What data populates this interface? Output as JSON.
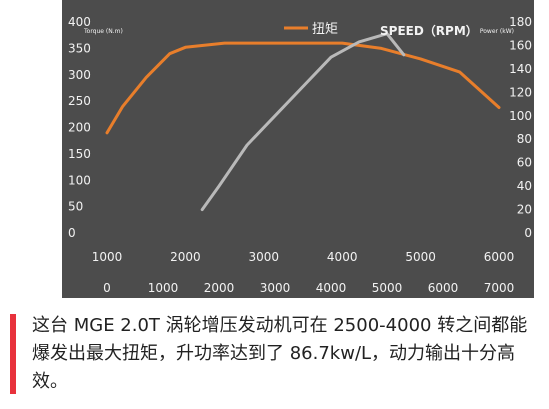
{
  "chart_data": {
    "type": "line",
    "title": "",
    "legend": {
      "torque_label": "扭矩",
      "power_label": "SPEED（RPM）",
      "placement": "top"
    },
    "y_left": {
      "title": "Torque (N.m)",
      "ticks": [
        "0",
        "50",
        "100",
        "150",
        "200",
        "250",
        "300",
        "350",
        "400"
      ],
      "ylim": [
        0,
        400
      ]
    },
    "y_right": {
      "title": "Power (kW)",
      "ticks": [
        "0",
        "20",
        "40",
        "60",
        "80",
        "100",
        "120",
        "140",
        "160",
        "180"
      ],
      "ylim": [
        0,
        180
      ]
    },
    "x_top": {
      "ticks": [
        "1000",
        "2000",
        "3000",
        "4000",
        "5000",
        "6000"
      ],
      "xlim": [
        1000,
        6000
      ]
    },
    "x_bottom": {
      "ticks": [
        "0",
        "1000",
        "2000",
        "3000",
        "4000",
        "5000",
        "6000",
        "7000"
      ],
      "xlim": [
        0,
        7000
      ]
    },
    "series": [
      {
        "name": "扭矩",
        "axis": "left-top",
        "color": "#e87e2b",
        "x": [
          1000,
          1200,
          1500,
          1800,
          2000,
          2500,
          3000,
          3500,
          4000,
          4500,
          5000,
          5500,
          6000
        ],
        "y": [
          190,
          240,
          295,
          340,
          352,
          360,
          360,
          360,
          360,
          350,
          330,
          305,
          238
        ]
      },
      {
        "name": "SPEED（RPM）",
        "axis": "right-bottom",
        "color": "#b9b9b9",
        "x": [
          1700,
          2000,
          2500,
          3000,
          3500,
          4000,
          4500,
          5000,
          5300
        ],
        "y": [
          20,
          40,
          75,
          100,
          125,
          150,
          163,
          170,
          152
        ]
      }
    ]
  },
  "caption": {
    "text": "这台 MGE 2.0T 涡轮增压发动机可在 2500-4000 转之间都能爆发出最大扭矩，升功率达到了 86.7kw/L，动力输出十分高效。"
  },
  "colors": {
    "panel": "#4c4c4c",
    "axis_text": "#f2f2f2",
    "accent": "#e8323c"
  }
}
